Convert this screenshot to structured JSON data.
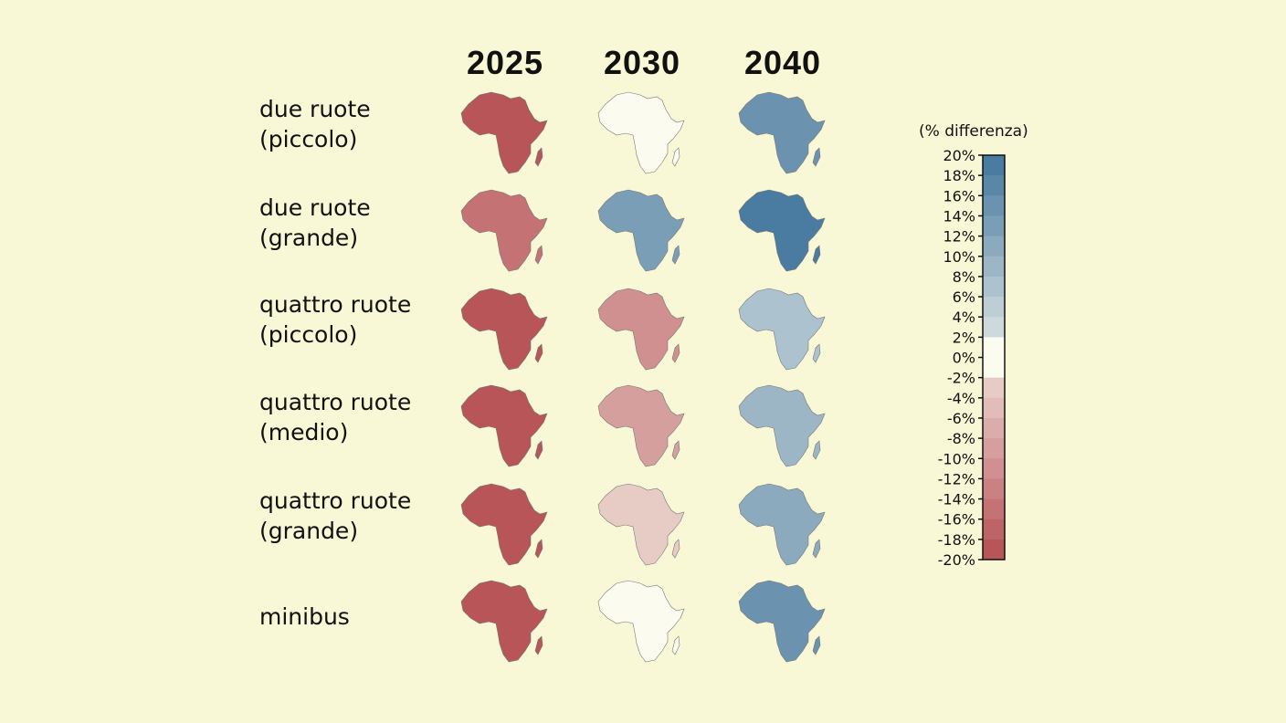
{
  "columns": [
    "2025",
    "2030",
    "2040"
  ],
  "rows": [
    "due ruote\n(piccolo)",
    "due ruote\n(grande)",
    "quattro ruote\n(piccolo)",
    "quattro ruote\n(medio)",
    "quattro ruote\n(grande)",
    "minibus"
  ],
  "chart_data": {
    "type": "choropleth small multiples",
    "region": "Africa",
    "legend_title": "(% differenza)",
    "legend_ticks": [
      "20%",
      "18%",
      "16%",
      "14%",
      "12%",
      "10%",
      "8%",
      "6%",
      "4%",
      "2%",
      "0%",
      "-2%",
      "-4%",
      "-6%",
      "-8%",
      "-10%",
      "-12%",
      "-14%",
      "-16%",
      "-18%",
      "-20%"
    ],
    "scale_range": [
      -20,
      20
    ],
    "bin_width": 2,
    "colors": {
      "negative": "#b85559",
      "neutral": "#fbfbf0",
      "positive": "#4a7ba0"
    },
    "typical_values": [
      {
        "row": "due ruote (piccolo)",
        "values": [
          -19,
          0,
          14
        ]
      },
      {
        "row": "due ruote (grande)",
        "values": [
          -14,
          12,
          19
        ]
      },
      {
        "row": "quattro ruote (piccolo)",
        "values": [
          -19,
          -10,
          7
        ]
      },
      {
        "row": "quattro ruote (medio)",
        "values": [
          -19,
          -8,
          8
        ]
      },
      {
        "row": "quattro ruote (grande)",
        "values": [
          -19,
          -3,
          10
        ]
      },
      {
        "row": "minibus",
        "values": [
          -19,
          0,
          15
        ]
      }
    ]
  }
}
